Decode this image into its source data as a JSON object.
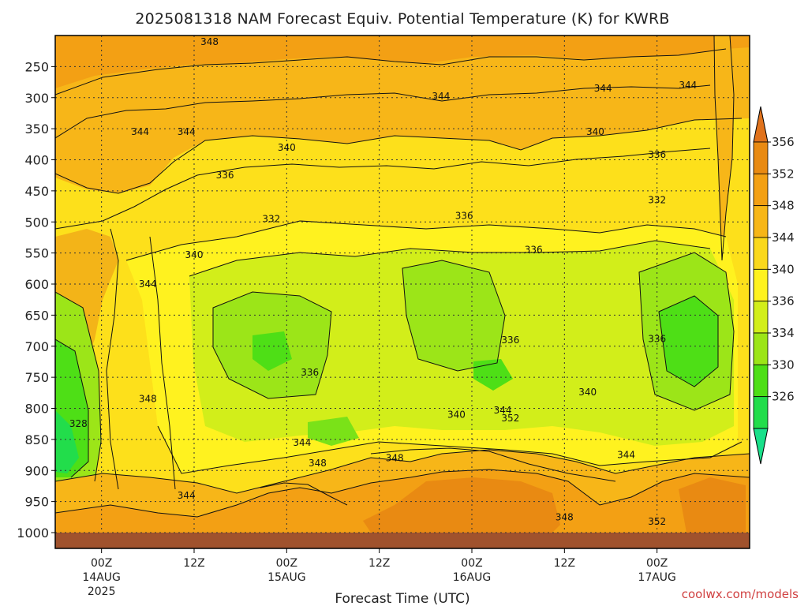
{
  "chart_data": {
    "type": "heatmap",
    "title": "2025081318 NAM Forecast Equiv. Potential Temperature (K) for KWRB",
    "xlabel": "Forecast Time (UTC)",
    "ylabel": "",
    "credit": "coolwx.com/models",
    "y_axis": {
      "quantity": "pressure (hPa)",
      "reversed": true,
      "ylim": [
        1000,
        200
      ],
      "ticks": [
        "250",
        "300",
        "350",
        "400",
        "450",
        "500",
        "550",
        "600",
        "650",
        "700",
        "750",
        "800",
        "850",
        "900",
        "950",
        "1000"
      ]
    },
    "x_axis": {
      "ticks": [
        {
          "time": "2025-08-14T00Z",
          "label": "00Z",
          "sub1": "14AUG",
          "sub2": "2025"
        },
        {
          "time": "2025-08-14T12Z",
          "label": "12Z",
          "sub1": "",
          "sub2": ""
        },
        {
          "time": "2025-08-15T00Z",
          "label": "00Z",
          "sub1": "15AUG",
          "sub2": ""
        },
        {
          "time": "2025-08-15T12Z",
          "label": "12Z",
          "sub1": "",
          "sub2": ""
        },
        {
          "time": "2025-08-16T00Z",
          "label": "00Z",
          "sub1": "16AUG",
          "sub2": ""
        },
        {
          "time": "2025-08-16T12Z",
          "label": "12Z",
          "sub1": "",
          "sub2": ""
        },
        {
          "time": "2025-08-17T00Z",
          "label": "00Z",
          "sub1": "17AUG",
          "sub2": ""
        }
      ],
      "xlim": [
        "2025-08-13T18Z",
        "2025-08-17T12Z"
      ]
    },
    "colorbar": {
      "unit": "K",
      "labels": [
        "356",
        "352",
        "348",
        "344",
        "340",
        "336",
        "334",
        "330",
        "326"
      ],
      "bands": [
        {
          "color": "#e98a12"
        },
        {
          "color": "#f3a014"
        },
        {
          "color": "#f7b618"
        },
        {
          "color": "#fad81c"
        },
        {
          "color": "#fff21f"
        },
        {
          "color": "#d2ee1a"
        },
        {
          "color": "#9ce518"
        },
        {
          "color": "#4edf16"
        },
        {
          "color": "#22dd4b"
        }
      ],
      "arrow_top": "#e0721c",
      "arrow_bottom": "#19e08a"
    },
    "contour_labels": [
      {
        "text": "348",
        "time": "2025-08-14T14Z",
        "p": 210
      },
      {
        "text": "344",
        "time": "2025-08-15T20Z",
        "p": 298
      },
      {
        "text": "344",
        "time": "2025-08-16T17Z",
        "p": 285
      },
      {
        "text": "344",
        "time": "2025-08-17T04Z",
        "p": 280
      },
      {
        "text": "344",
        "time": "2025-08-14T05Z",
        "p": 355
      },
      {
        "text": "344",
        "time": "2025-08-14T11Z",
        "p": 355
      },
      {
        "text": "340",
        "time": "2025-08-15T00Z",
        "p": 380
      },
      {
        "text": "340",
        "time": "2025-08-16T16Z",
        "p": 355
      },
      {
        "text": "336",
        "time": "2025-08-14T16Z",
        "p": 425
      },
      {
        "text": "336",
        "time": "2025-08-17T00Z",
        "p": 392
      },
      {
        "text": "332",
        "time": "2025-08-14T22Z",
        "p": 495
      },
      {
        "text": "336",
        "time": "2025-08-15T23Z",
        "p": 490
      },
      {
        "text": "332",
        "time": "2025-08-17T00Z",
        "p": 465
      },
      {
        "text": "340",
        "time": "2025-08-14T12Z",
        "p": 553
      },
      {
        "text": "336",
        "time": "2025-08-16T08Z",
        "p": 545
      },
      {
        "text": "344",
        "time": "2025-08-14T06Z",
        "p": 600
      },
      {
        "text": "336",
        "time": "2025-08-16T05Z",
        "p": 690
      },
      {
        "text": "336",
        "time": "2025-08-17T00Z",
        "p": 688
      },
      {
        "text": "336",
        "time": "2025-08-15T03Z",
        "p": 742
      },
      {
        "text": "340",
        "time": "2025-08-16T15Z",
        "p": 774
      },
      {
        "text": "340",
        "time": "2025-08-15T22Z",
        "p": 810
      },
      {
        "text": "344",
        "time": "2025-08-16T04Z",
        "p": 803
      },
      {
        "text": "352",
        "time": "2025-08-16T05Z",
        "p": 816
      },
      {
        "text": "348",
        "time": "2025-08-14T06Z",
        "p": 785
      },
      {
        "text": "344",
        "time": "2025-08-15T02Z",
        "p": 855
      },
      {
        "text": "348",
        "time": "2025-08-15T04Z",
        "p": 888
      },
      {
        "text": "348",
        "time": "2025-08-15T14Z",
        "p": 880
      },
      {
        "text": "344",
        "time": "2025-08-16T20Z",
        "p": 875
      },
      {
        "text": "344",
        "time": "2025-08-14T11Z",
        "p": 940
      },
      {
        "text": "348",
        "time": "2025-08-16T12Z",
        "p": 975
      },
      {
        "text": "352",
        "time": "2025-08-17T00Z",
        "p": 982
      },
      {
        "text": "328",
        "time": "2025-08-13T21Z",
        "p": 825
      }
    ]
  }
}
